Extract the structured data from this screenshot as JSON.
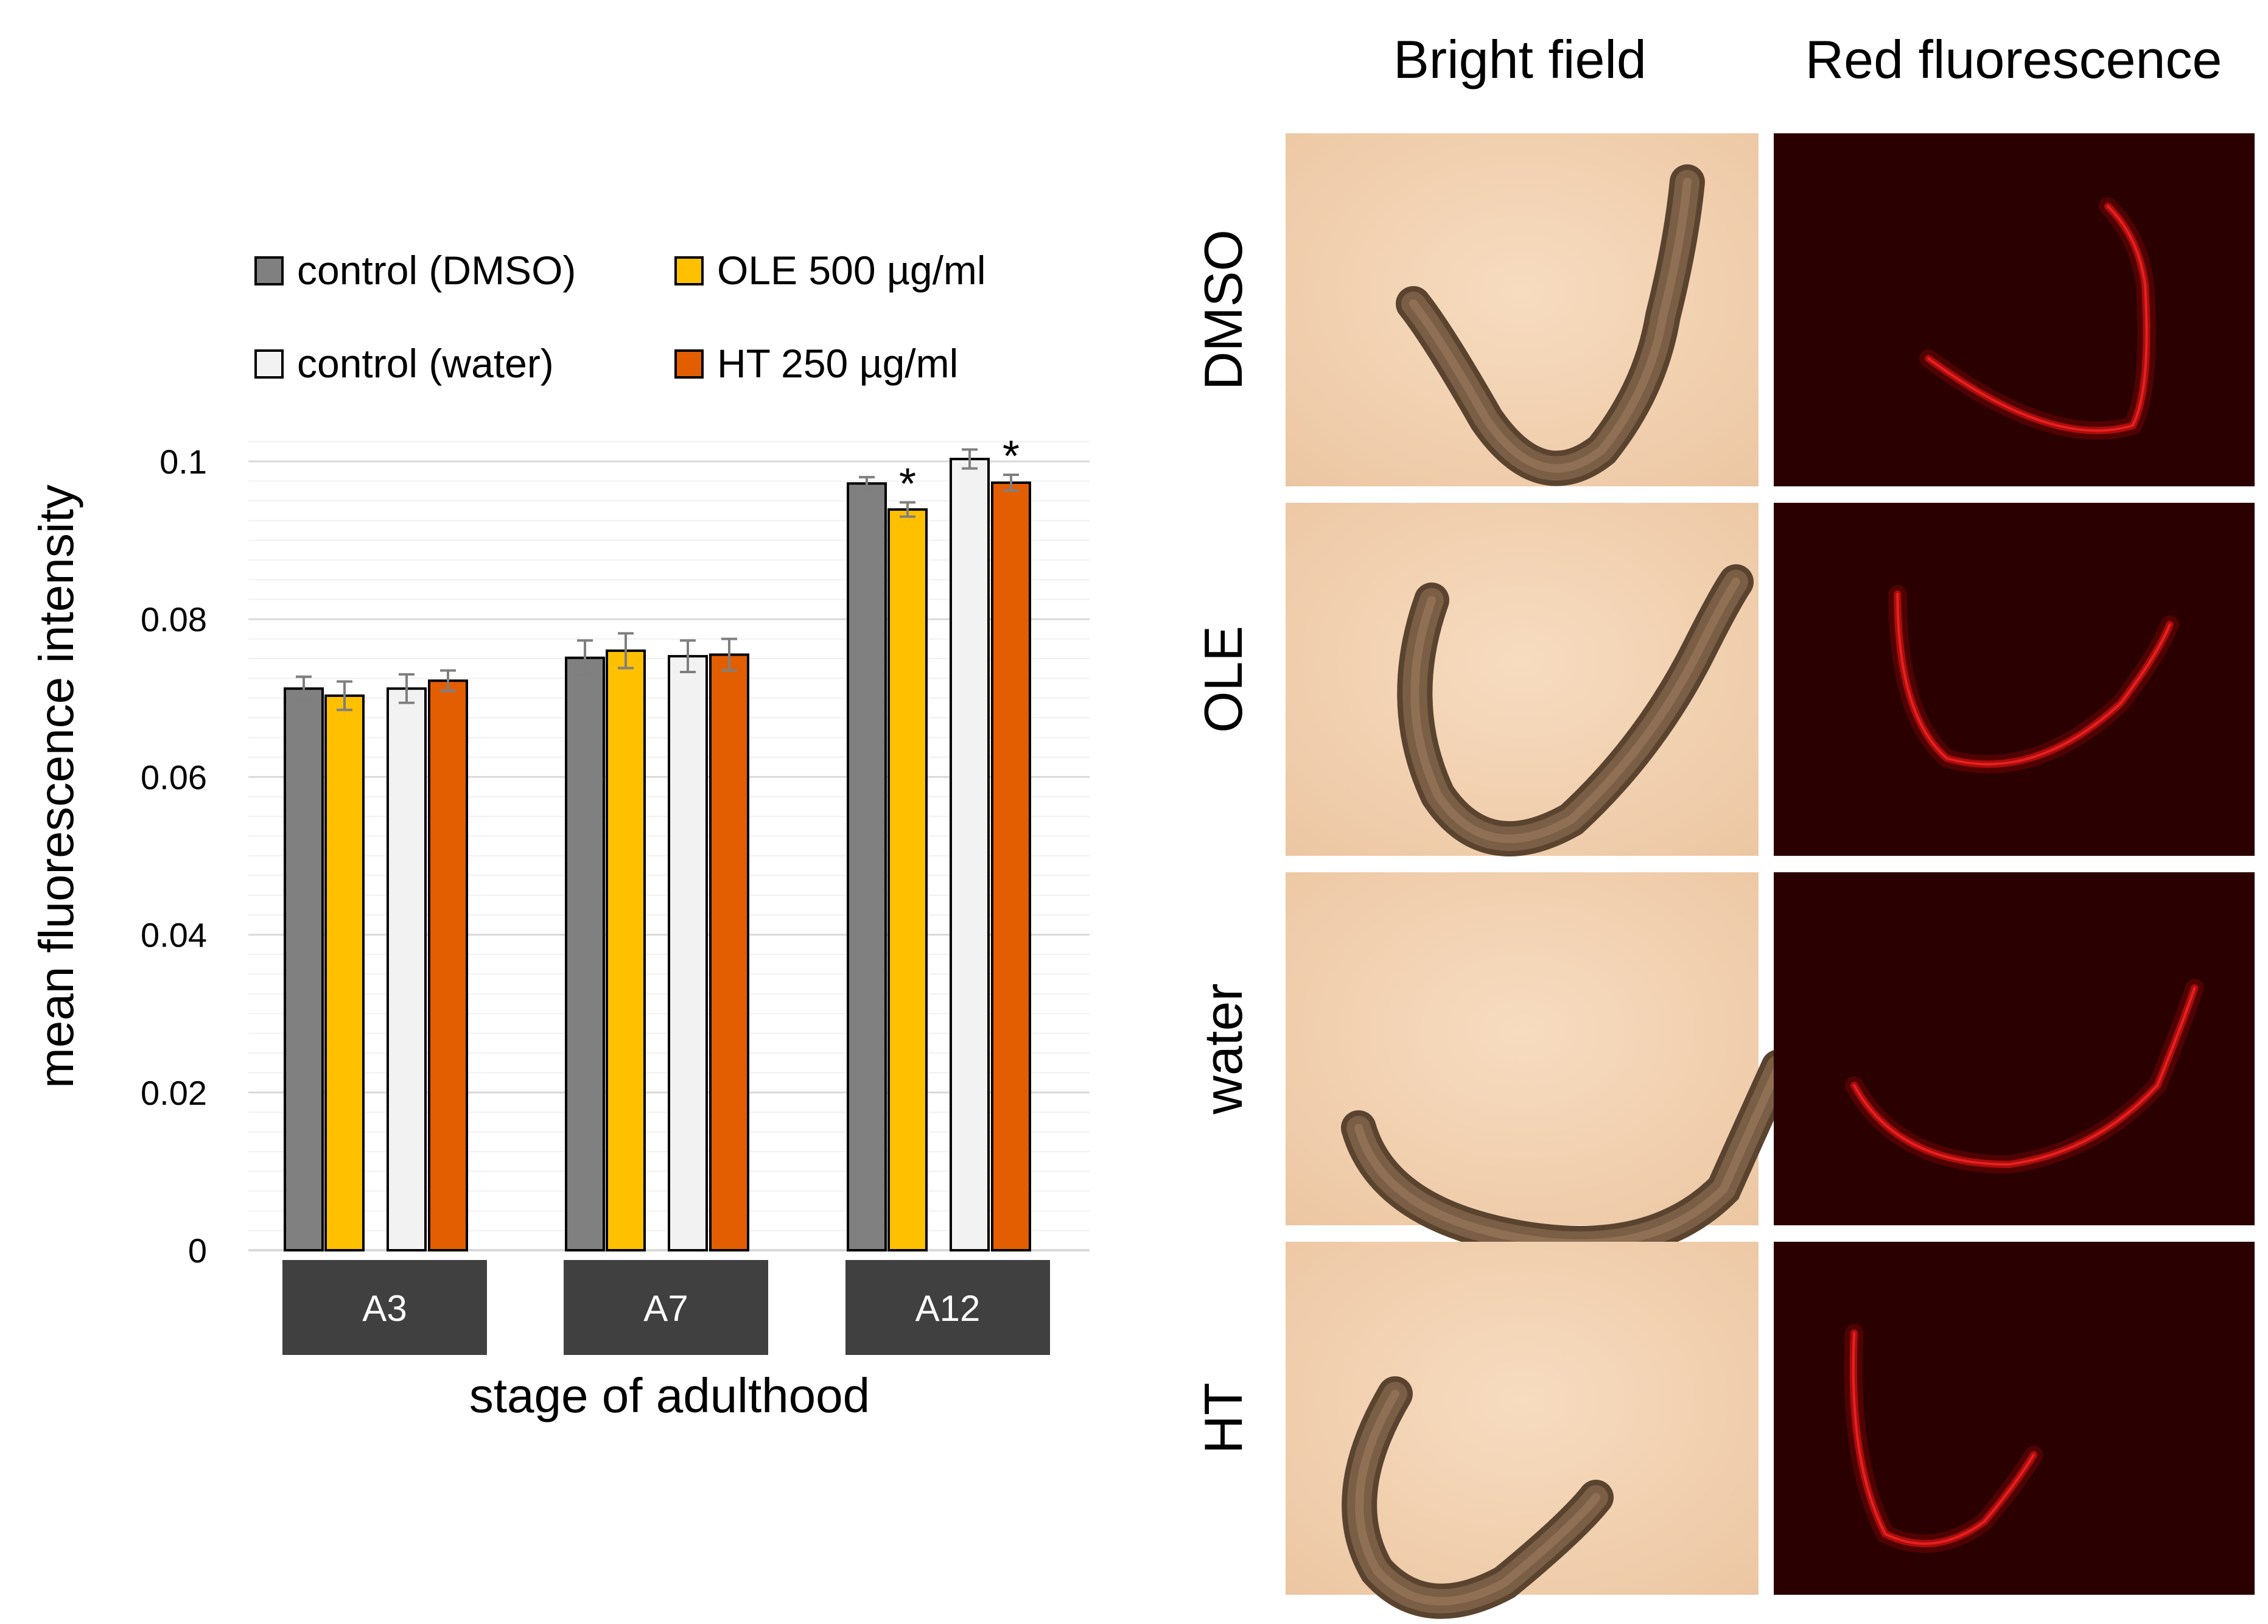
{
  "chart_data": {
    "type": "bar",
    "categories": [
      "A3",
      "A7",
      "A12"
    ],
    "series": [
      {
        "name": "control (DMSO)",
        "color": "#808080",
        "values": [
          0.0712,
          0.0751,
          0.0972
        ],
        "errors": [
          0.0015,
          0.0022,
          0.0008
        ]
      },
      {
        "name": "OLE 500 µg/ml",
        "color": "#ffc000",
        "values": [
          0.0703,
          0.076,
          0.0939
        ],
        "errors": [
          0.0018,
          0.0022,
          0.0009
        ]
      },
      {
        "name": "control (water)",
        "color": "#f2f2f2",
        "values": [
          0.0712,
          0.0753,
          0.1003
        ],
        "errors": [
          0.0018,
          0.002,
          0.0012
        ]
      },
      {
        "name": "HT 250 µg/ml",
        "color": "#e25e00",
        "values": [
          0.0722,
          0.0755,
          0.0973
        ],
        "errors": [
          0.0013,
          0.002,
          0.001
        ]
      }
    ],
    "significance": [
      {
        "category": "A12",
        "series": "OLE 500 µg/ml",
        "label": "*"
      },
      {
        "category": "A12",
        "series": "HT 250 µg/ml",
        "label": "*"
      }
    ],
    "title": "",
    "xlabel": "stage of adulthood",
    "ylabel": "mean fluorescence intensity",
    "ylim": [
      0,
      0.1
    ],
    "yticks": [
      "0",
      "0.02",
      "0.04",
      "0.06",
      "0.08",
      "0.1"
    ],
    "grid": true,
    "legend": "top-left"
  },
  "micrographs": {
    "columns": [
      "Bright field",
      "Red fluorescence"
    ],
    "rows": [
      "DMSO",
      "OLE",
      "water",
      "HT"
    ]
  }
}
